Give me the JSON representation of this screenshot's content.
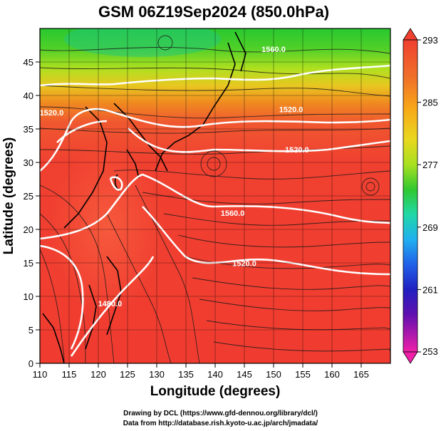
{
  "title": "GSM 06Z19Sep2024 (850.0hPa)",
  "xlabel": "Longitude (degrees)",
  "ylabel": "Latitude (degrees)",
  "credits": {
    "line1": "Drawing by DCL (https://www.gfd-dennou.org/library/dcl/)",
    "line2": "Data from http://database.rish.kyoto-u.ac.jp/arch/jmadata/"
  },
  "chart_data": {
    "type": "heatmap",
    "title": "GSM 06Z19Sep2024 (850.0hPa)",
    "xlabel": "Longitude (degrees)",
    "ylabel": "Latitude (degrees)",
    "xlim": [
      110,
      170
    ],
    "ylim": [
      0,
      50
    ],
    "xticks": [
      110,
      115,
      120,
      125,
      130,
      135,
      140,
      145,
      150,
      155,
      160,
      165
    ],
    "yticks": [
      0,
      5,
      10,
      15,
      20,
      25,
      30,
      35,
      40,
      45
    ],
    "grid": true,
    "colorbar": {
      "min": 253,
      "max": 293,
      "tick_labels": [
        "293",
        "285",
        "277",
        "269",
        "261",
        "253"
      ],
      "tick_values": [
        293,
        285,
        277,
        269,
        261,
        253
      ],
      "colors": [
        "#f04030",
        "#f06820",
        "#f8a010",
        "#e8d820",
        "#a0e020",
        "#30c830",
        "#20d8a0",
        "#20a0f0",
        "#2050e0",
        "#3020c0",
        "#9010b0",
        "#f020a0"
      ]
    },
    "contours": [
      {
        "label": "1560.0",
        "lon": 150,
        "lat": 46.5
      },
      {
        "label": "1520.0",
        "lon": 153,
        "lat": 37.5
      },
      {
        "label": "1520.0",
        "lon": 154,
        "lat": 31.5
      },
      {
        "label": "1520.0",
        "lon": 112,
        "lat": 37
      },
      {
        "label": "1560.0",
        "lon": 143,
        "lat": 22
      },
      {
        "label": "1520.0",
        "lon": 145,
        "lat": 14.5
      },
      {
        "label": "1480.0",
        "lon": 122,
        "lat": 8.5
      }
    ]
  }
}
